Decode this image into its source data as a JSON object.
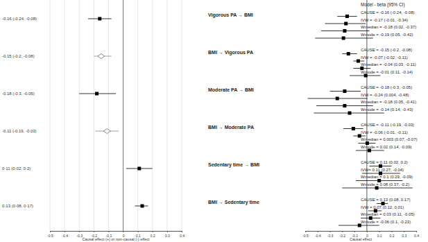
{
  "chart_data": [
    {
      "type": "forest",
      "x_label": "Causal effect (+) or non-causal (-) effect",
      "categories": [
        "-0.16 (-0.24, -0.08)",
        "-0.15 (-0.2, -0.08)",
        "-0.18 (-0.3, -0.05)",
        "-0.11 (-0.19, -0.03)",
        "0·11 (0·02, 0·2)",
        "0·13 (0·08, 0·17)"
      ],
      "series": [
        {
          "marker": "square",
          "color": "#000000",
          "values": [
            -0.16,
            null,
            -0.18,
            null,
            0.11,
            0.13
          ],
          "ci": [
            [
              -0.24,
              -0.08
            ],
            null,
            [
              -0.3,
              -0.05
            ],
            null,
            [
              0.02,
              0.2
            ],
            [
              0.08,
              0.17
            ]
          ]
        },
        {
          "marker": "diamond",
          "color": "#888888",
          "values": [
            null,
            -0.15,
            null,
            -0.11,
            null,
            null
          ],
          "ci": [
            null,
            [
              -0.2,
              -0.08
            ],
            null,
            [
              -0.19,
              -0.03
            ],
            null,
            null
          ]
        }
      ],
      "xlim": [
        -0.5,
        0.4
      ],
      "xticks": [
        -0.5,
        -0.4,
        -0.3,
        -0.2,
        -0.1,
        0,
        0.1,
        0.2,
        0.3,
        0.4
      ],
      "grid": true
    },
    {
      "type": "forest",
      "x_label": "Causal effect",
      "annotation": "Model - beta (95% CI)",
      "marker": "square",
      "color": "#000000",
      "groups": [
        {
          "title": "Vigorous PA → BMI",
          "categories": [
            "CAUSE = -0.16 (-0.24, -0.08)",
            "IVW = -0.17 (-0.01, -0.34)",
            "Wmedian = -0.18 (0.02, -0.37)",
            "Wmode = -0.19 (0.05, -0.42)"
          ],
          "values": [
            -0.16,
            -0.17,
            -0.18,
            -0.19
          ],
          "ci": [
            [
              -0.24,
              -0.08
            ],
            [
              -0.01,
              -0.34
            ],
            [
              0.02,
              -0.37
            ],
            [
              0.05,
              -0.42
            ]
          ]
        },
        {
          "title": "BMI → Vigorous PA",
          "categories": [
            "CAUSE = -0.15 (-0.2, -0.08)",
            "IVW = -0.07 (-0.02, -0.11)",
            "Wmedian = -0.04 (0.03, -0.11)",
            "Wmode = -0.01 (0.11, -0.14)"
          ],
          "values": [
            -0.15,
            -0.07,
            -0.04,
            -0.01
          ],
          "ci": [
            [
              -0.2,
              -0.08
            ],
            [
              -0.02,
              -0.11
            ],
            [
              0.03,
              -0.11
            ],
            [
              0.11,
              -0.14
            ]
          ]
        },
        {
          "title": "Moderate PA → BMI",
          "categories": [
            "CAUSE = -0.18 (-0.3, -0.05)",
            "IVW = -0.24 (0.004, -0.48)",
            "Wmedian = -0.18 (0.05, -0.41)",
            "Wmode = -0.14 (0.14, -0.43)"
          ],
          "values": [
            -0.18,
            -0.24,
            -0.18,
            -0.14
          ],
          "ci": [
            [
              -0.3,
              -0.05
            ],
            [
              0.004,
              -0.48
            ],
            [
              0.05,
              -0.41
            ],
            [
              0.14,
              -0.43
            ]
          ]
        },
        {
          "title": "BMI → Moderate PA",
          "categories": [
            "CAUSE = -0.11 (-0.19, -0.03)",
            "IVW = -0.06 (-0.01, -0.11)",
            "Wmedian = 0.003 (0.07, -0.07)",
            "Wmode = 0.02 (0.14, -0.09)"
          ],
          "values": [
            -0.11,
            -0.06,
            0.003,
            0.02
          ],
          "ci": [
            [
              -0.19,
              -0.03
            ],
            [
              -0.01,
              -0.11
            ],
            [
              0.07,
              -0.07
            ],
            [
              0.14,
              -0.09
            ]
          ]
        },
        {
          "title": "Sedentary time → BMI",
          "categories": [
            "CAUSE = 0.11 (0.02, 0.2)",
            "IVW= 0.11 (0.27, -0.04)",
            "Wmedian = 0.1 (0.29, -0.09)",
            "Wmode = 0.08 (0.37, -0.2)"
          ],
          "values": [
            0.11,
            0.11,
            0.1,
            0.08
          ],
          "ci": [
            [
              0.02,
              0.2
            ],
            [
              0.27,
              -0.04
            ],
            [
              0.29,
              -0.09
            ],
            [
              0.37,
              -0.2
            ]
          ]
        },
        {
          "title": "BMI → Sedentary time",
          "categories": [
            "CAUSE = 0.13 (0.08, 0.17)",
            "IVW = 0.07 (0.12, 0.01)",
            "Wmedian = 0.03 (0.11, -0.05)",
            "Wmode = -0.06 (0.1, -0.23)"
          ],
          "values": [
            0.13,
            0.07,
            0.03,
            -0.06
          ],
          "ci": [
            [
              0.08,
              0.17
            ],
            [
              0.12,
              0.01
            ],
            [
              0.11,
              -0.05
            ],
            [
              0.1,
              -0.23
            ]
          ]
        }
      ],
      "xlim": [
        -0.5,
        0.4
      ],
      "xticks": [
        -0.5,
        -0.4,
        -0.3,
        -0.2,
        -0.1,
        0,
        0.1,
        0.2,
        0.3,
        0.4
      ],
      "grid": false
    }
  ]
}
